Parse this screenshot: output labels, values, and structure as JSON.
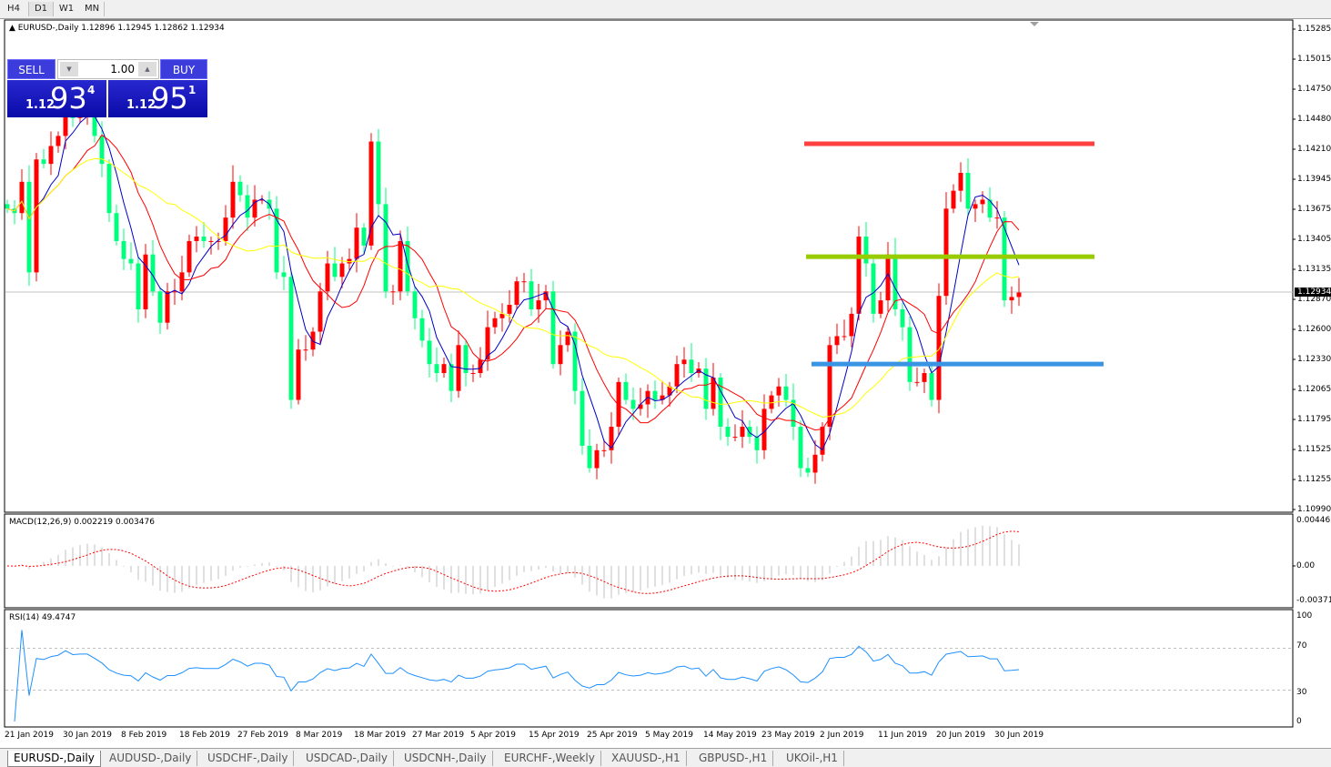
{
  "timeframes": [
    {
      "label": "H4"
    },
    {
      "label": "D1",
      "selected": true
    },
    {
      "label": "W1"
    },
    {
      "label": "MN"
    }
  ],
  "chart": {
    "header": "EURUSD-,Daily  1.12896 1.12945 1.12862 1.12934",
    "current_price": 1.12934,
    "current_price_label": "1.12934",
    "bull_color": "#ff0000",
    "bear_color": "#00ff7f",
    "price_axis": [
      "1.15285",
      "1.15015",
      "1.14750",
      "1.14480",
      "1.14210",
      "1.13945",
      "1.13675",
      "1.13405",
      "1.13135",
      "1.12870",
      "1.12600",
      "1.12330",
      "1.12065",
      "1.11795",
      "1.11525",
      "1.11255",
      "1.10990"
    ],
    "price_range": [
      1.1099,
      1.15285
    ],
    "closes": [
      1.1368,
      1.1364,
      1.1392,
      1.1311,
      1.1412,
      1.1408,
      1.1424,
      1.1433,
      1.1465,
      1.1449,
      1.1453,
      1.1453,
      1.1433,
      1.1408,
      1.1364,
      1.1339,
      1.1323,
      1.1319,
      1.1278,
      1.1327,
      1.1294,
      1.1266,
      1.1294,
      1.1294,
      1.1311,
      1.1339,
      1.1343,
      1.1339,
      1.1339,
      1.1339,
      1.136,
      1.1392,
      1.138,
      1.136,
      1.1376,
      1.1376,
      1.1368,
      1.1311,
      1.1307,
      1.1197,
      1.1242,
      1.1242,
      1.1258,
      1.1294,
      1.1319,
      1.1307,
      1.1319,
      1.1323,
      1.1351,
      1.1335,
      1.1428,
      1.1372,
      1.1294,
      1.1294,
      1.1339,
      1.1294,
      1.127,
      1.125,
      1.1229,
      1.1221,
      1.1229,
      1.1205,
      1.1246,
      1.1221,
      1.1221,
      1.1233,
      1.1262,
      1.127,
      1.1274,
      1.1282,
      1.1303,
      1.1303,
      1.1278,
      1.1286,
      1.1294,
      1.1229,
      1.1246,
      1.1258,
      1.1205,
      1.1156,
      1.1136,
      1.1152,
      1.1152,
      1.1173,
      1.1213,
      1.1197,
      1.1189,
      1.1193,
      1.1205,
      1.1197,
      1.1201,
      1.1209,
      1.1229,
      1.1233,
      1.1221,
      1.1225,
      1.1189,
      1.1217,
      1.1173,
      1.1164,
      1.1164,
      1.1173,
      1.1164,
      1.1152,
      1.1189,
      1.1201,
      1.1209,
      1.1197,
      1.1173,
      1.1136,
      1.1132,
      1.1148,
      1.1173,
      1.1246,
      1.1254,
      1.1254,
      1.1274,
      1.1343,
      1.1319,
      1.1274,
      1.1286,
      1.1327,
      1.1278,
      1.1262,
      1.1213,
      1.1213,
      1.1221,
      1.1197,
      1.129,
      1.1368,
      1.1384,
      1.14,
      1.1368,
      1.1372,
      1.1376,
      1.136,
      1.136,
      1.1286,
      1.1289,
      1.1293
    ],
    "moving_averages": [
      {
        "period": 5,
        "color": "#0000c8"
      },
      {
        "period": 10,
        "color": "#ff0000"
      },
      {
        "period": 20,
        "color": "#ffff00"
      }
    ],
    "levels": [
      {
        "price": 1.1426,
        "color": "#ff4040"
      },
      {
        "price": 1.1325,
        "color": "#99cc00"
      },
      {
        "price": 1.1229,
        "color": "#3a94e4"
      }
    ]
  },
  "one_click": {
    "sell_label": "SELL",
    "buy_label": "BUY",
    "lot": "1.00",
    "sell_small": "1.12",
    "sell_big": "93",
    "sell_sup": "4",
    "buy_small": "1.12",
    "buy_big": "95",
    "buy_sup": "1"
  },
  "macd": {
    "header": "MACD(12,26,9) 0.002219 0.003476",
    "axis": [
      "0.004465",
      "0.00",
      "-0.003715"
    ]
  },
  "rsi": {
    "header": "RSI(14) 49.4747",
    "axis": [
      "100",
      "70",
      "30",
      "0"
    ],
    "levels": [
      70,
      30
    ]
  },
  "time_axis": [
    "21 Jan 2019",
    "30 Jan 2019",
    "8 Feb 2019",
    "18 Feb 2019",
    "27 Feb 2019",
    "8 Mar 2019",
    "18 Mar 2019",
    "27 Mar 2019",
    "5 Apr 2019",
    "15 Apr 2019",
    "25 Apr 2019",
    "5 May 2019",
    "14 May 2019",
    "23 May 2019",
    "2 Jun 2019",
    "11 Jun 2019",
    "20 Jun 2019",
    "30 Jun 2019"
  ],
  "tabs": [
    {
      "label": "EURUSD-,Daily",
      "selected": true
    },
    {
      "label": "AUDUSD-,Daily"
    },
    {
      "label": "USDCHF-,Daily"
    },
    {
      "label": "USDCAD-,Daily"
    },
    {
      "label": "USDCNH-,Daily"
    },
    {
      "label": "EURCHF-,Weekly"
    },
    {
      "label": "XAUUSD-,H1"
    },
    {
      "label": "GBPUSD-,H1"
    },
    {
      "label": "UKOil-,H1"
    }
  ]
}
